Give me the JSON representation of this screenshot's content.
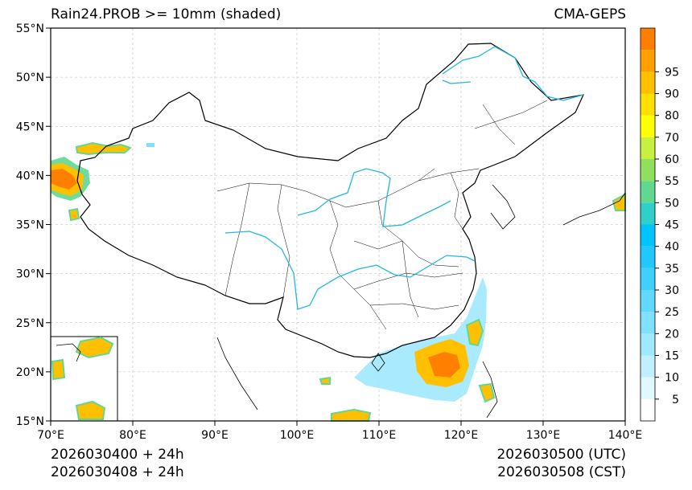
{
  "header": {
    "title": "Rain24.PROB >= 10mm (shaded)",
    "model": "CMA-GEPS"
  },
  "footer": {
    "init_utc": "2026030400 + 24h",
    "init_cst": "2026030408 + 24h",
    "valid_utc": "2026030500 (UTC)",
    "valid_cst": "2026030508 (CST)"
  },
  "map": {
    "lon_range": [
      70,
      140
    ],
    "lat_range": [
      15,
      55
    ],
    "lon_ticks": [
      "70°E",
      "80°E",
      "90°E",
      "100°E",
      "110°E",
      "120°E",
      "130°E",
      "140°E"
    ],
    "lat_ticks": [
      "15°N",
      "20°N",
      "25°N",
      "30°N",
      "35°N",
      "40°N",
      "45°N",
      "50°N",
      "55°N"
    ]
  },
  "colorbar": {
    "labels": [
      "5",
      "10",
      "15",
      "20",
      "25",
      "30",
      "35",
      "40",
      "45",
      "50",
      "55",
      "60",
      "70",
      "80",
      "90",
      "95"
    ],
    "colors": [
      "#ffffff",
      "#e0f8ff",
      "#c0f0ff",
      "#a0e8ff",
      "#80e0ff",
      "#60d8ff",
      "#40d0ff",
      "#20c8ff",
      "#00c4ff",
      "#30d0c8",
      "#60d890",
      "#90e060",
      "#c8f040",
      "#ffff00",
      "#ffe000",
      "#ffc000",
      "#ffa000",
      "#ff8000"
    ]
  },
  "colors": {
    "rivers": "#20b8e0",
    "border": "#000000",
    "grid": "#bbbbbb"
  }
}
